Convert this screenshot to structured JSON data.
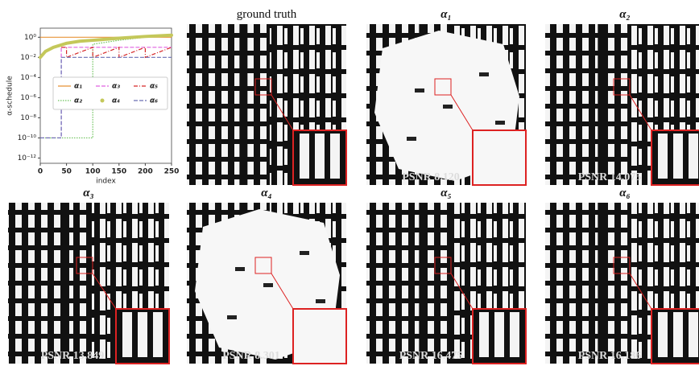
{
  "chart_data": {
    "type": "line",
    "xlabel": "index",
    "ylabel": "α-schedule",
    "log_y": true,
    "legend": "center",
    "xlim": [
      0,
      250
    ],
    "xticks": [
      0,
      50,
      100,
      150,
      200,
      250
    ],
    "ylim": [
      3e-13,
      8
    ],
    "yticks": [
      {
        "value": 1,
        "label": "10⁰"
      },
      {
        "value": 0.01,
        "label": "10⁻²"
      },
      {
        "value": 0.0001,
        "label": "10⁻⁴"
      },
      {
        "value": 1e-06,
        "label": "10⁻⁶"
      },
      {
        "value": 1e-08,
        "label": "10⁻⁸"
      },
      {
        "value": 1e-10,
        "label": "10⁻¹⁰"
      },
      {
        "value": 1e-12,
        "label": "10⁻¹²"
      }
    ],
    "series": [
      {
        "name": "α₁",
        "color": "#e8943a",
        "style": "solid",
        "x": [
          0,
          250
        ],
        "values": [
          1,
          1
        ]
      },
      {
        "name": "α₂",
        "color": "#6cc25a",
        "style": "dotted",
        "x": [
          0,
          100,
          100,
          150,
          200,
          250
        ],
        "values": [
          1e-10,
          1e-10,
          0.2,
          0.5,
          1,
          1.6
        ]
      },
      {
        "name": "α₃",
        "color": "#e060e0",
        "style": "dashed",
        "x": [
          0,
          40,
          40,
          250
        ],
        "values": [
          1e-10,
          1e-10,
          0.1,
          0.1
        ]
      },
      {
        "name": "α₄",
        "color": "#c4c85a",
        "style": "markers",
        "x": [
          0,
          10,
          25,
          50,
          75,
          100,
          150,
          200,
          250
        ],
        "values": [
          0.01,
          0.04,
          0.1,
          0.25,
          0.4,
          0.5,
          0.8,
          1.2,
          1.6
        ]
      },
      {
        "name": "α₅",
        "color": "#d62728",
        "style": "dashdot",
        "x": [
          40,
          50,
          50,
          100,
          100,
          150,
          150,
          200,
          200,
          250
        ],
        "values": [
          0.1,
          0.1,
          0.01,
          0.1,
          0.01,
          0.1,
          0.01,
          0.1,
          0.01,
          0.1
        ]
      },
      {
        "name": "α₆",
        "color": "#6a6fb5",
        "style": "dashed",
        "x": [
          0,
          40,
          40,
          250
        ],
        "values": [
          1e-10,
          1e-10,
          0.01,
          0.01
        ]
      }
    ]
  },
  "panels": [
    {
      "title": "ground truth"
    },
    {
      "title": "α₁",
      "caption": "PSNR 8.120"
    },
    {
      "title": "α₂",
      "caption": "PSNR 14.075"
    },
    {
      "title": "α₃",
      "caption": "PSNR 13.849"
    },
    {
      "title": "α₄",
      "caption": "PSNR 8.301"
    },
    {
      "title": "α₅",
      "caption": "PSNR 16.475"
    },
    {
      "title": "α₆",
      "caption": "PSNR 16.186"
    }
  ]
}
